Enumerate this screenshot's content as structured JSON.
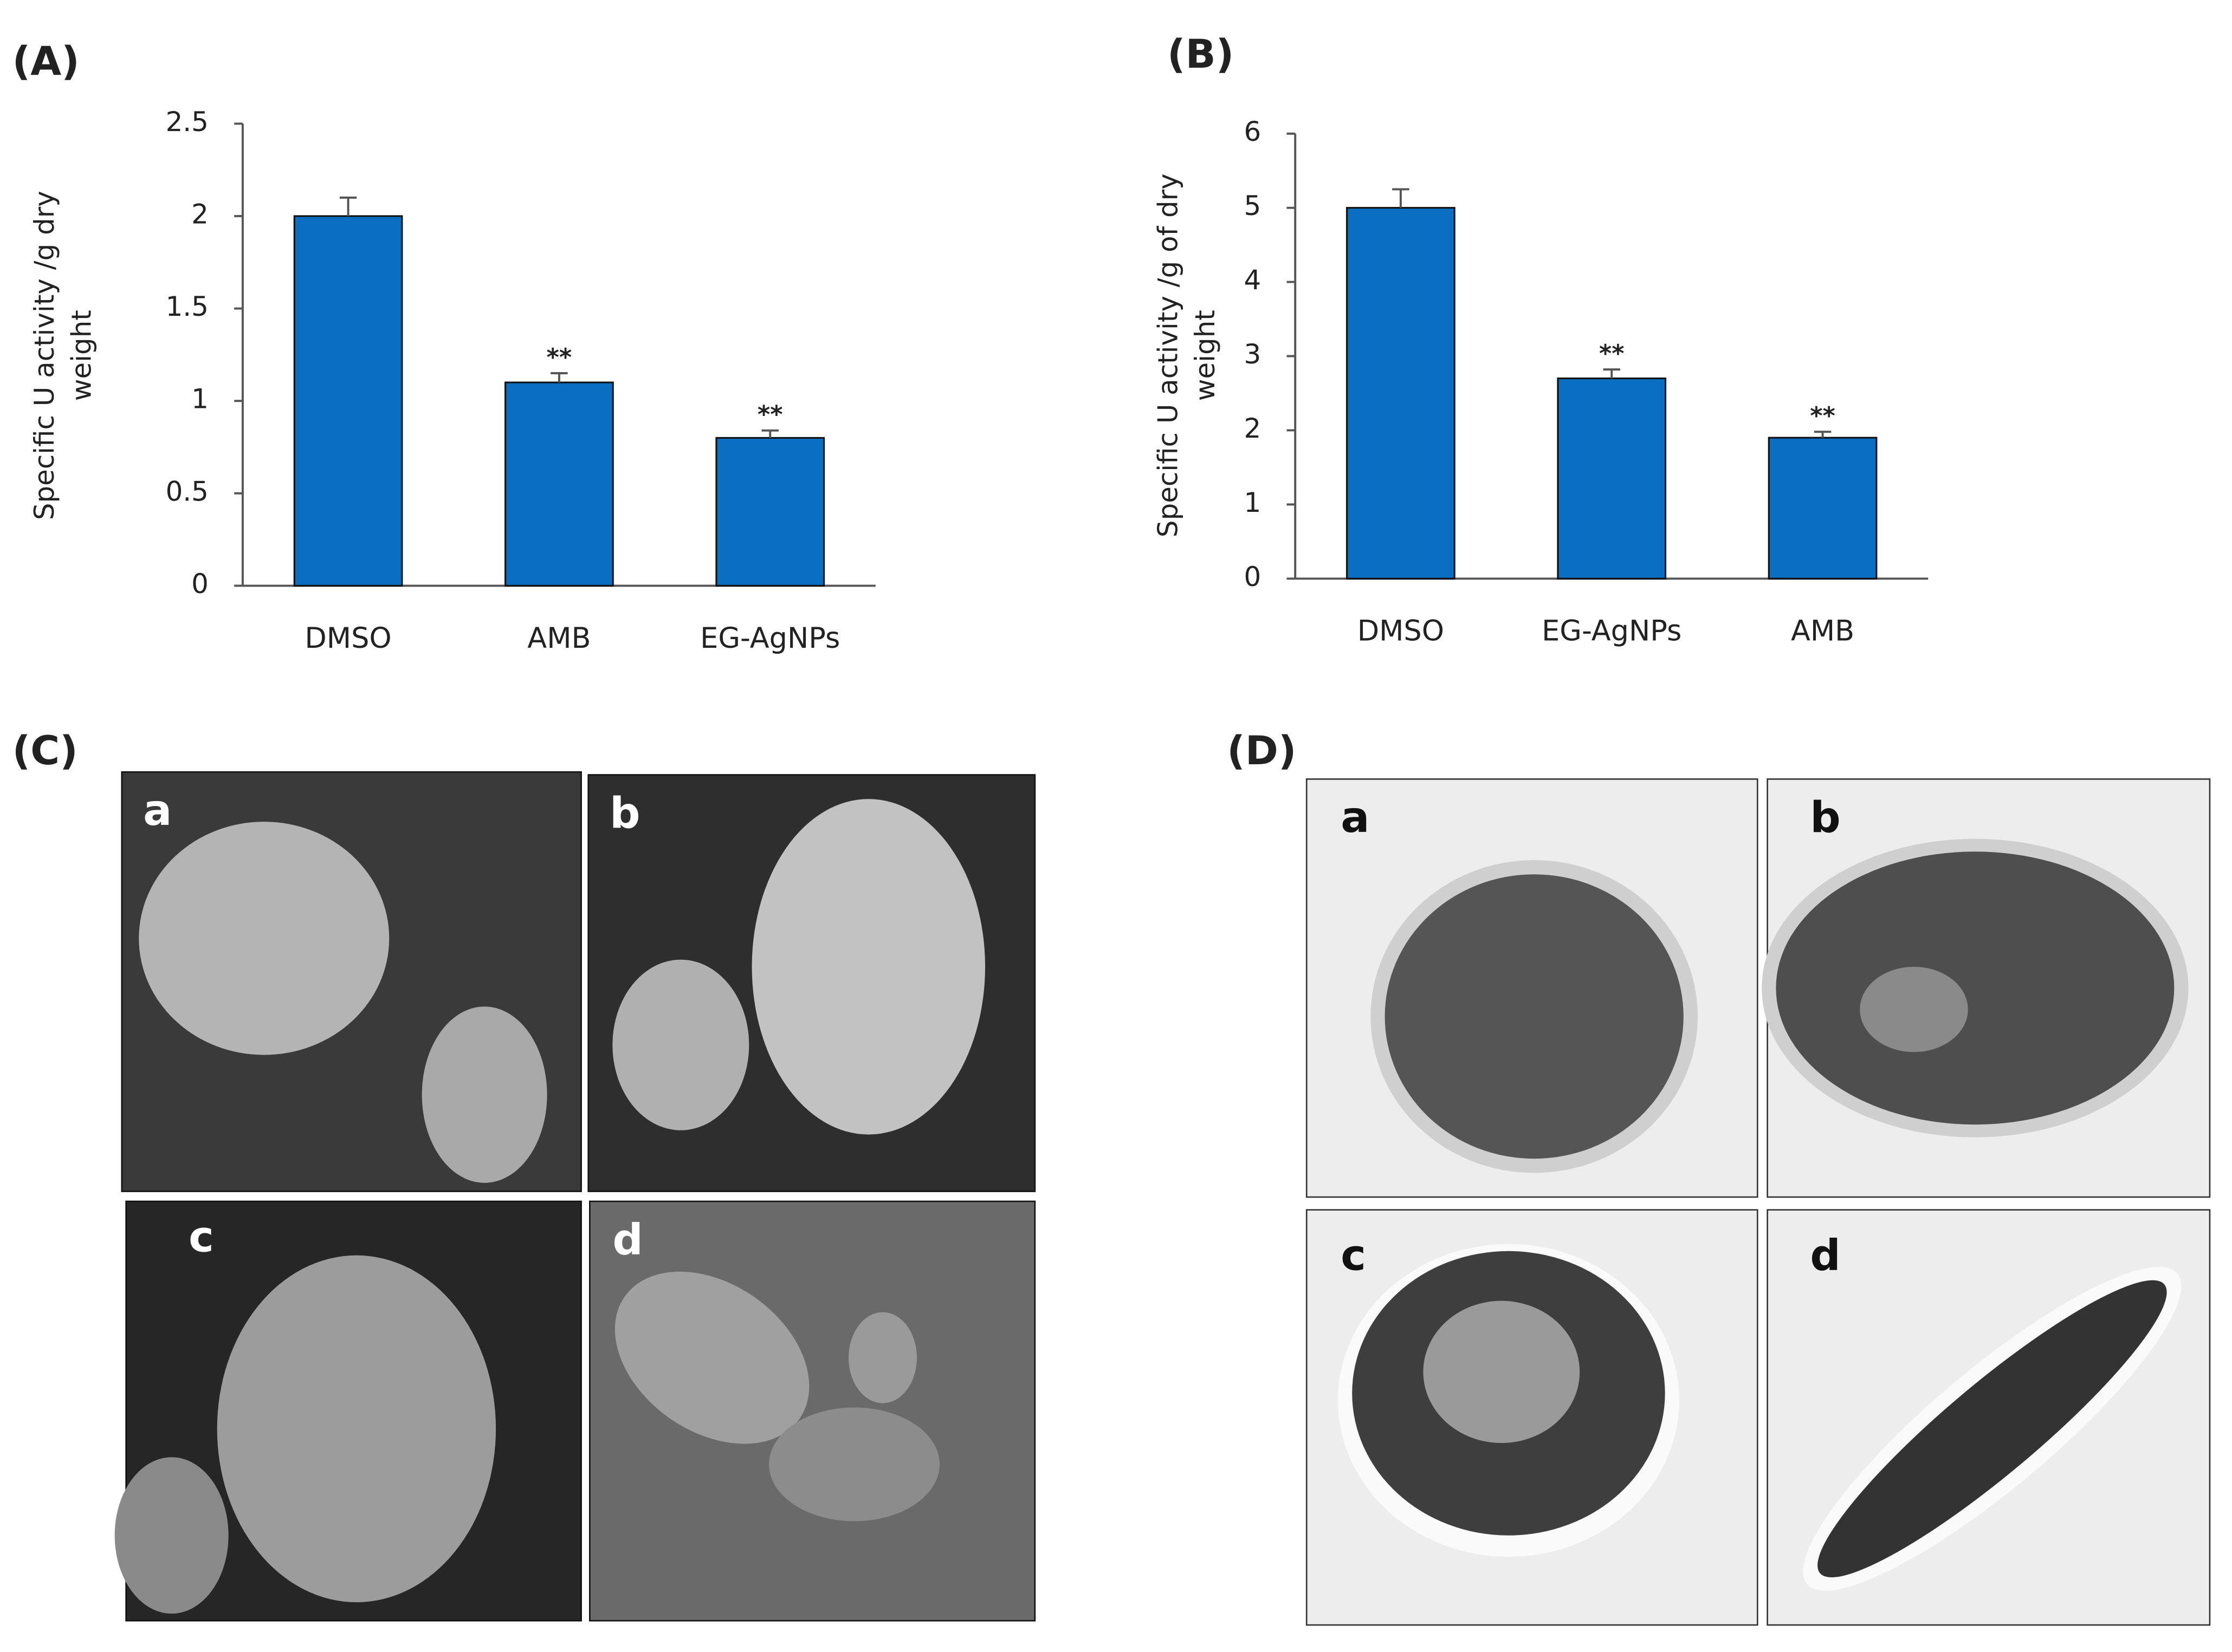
{
  "chart_data": [
    {
      "type": "bar",
      "title": "(A)",
      "y_label": [
        "Specific U activity /g dry",
        "weight"
      ],
      "categories": [
        "DMSO",
        "AMB",
        "EG-AgNPs"
      ],
      "values": [
        2.0,
        1.1,
        0.8
      ],
      "errors": [
        0.1,
        0.05,
        0.04
      ],
      "significance": [
        null,
        "**",
        "**"
      ],
      "color": "#0a6fc2",
      "ylim": [
        0,
        2.5
      ],
      "yticks": [
        0,
        0.5,
        1,
        1.5,
        2,
        2.5
      ],
      "grid": false
    },
    {
      "type": "bar",
      "title": "(B)",
      "y_label": [
        "Specific U activity /g of dry",
        "weight"
      ],
      "categories": [
        "DMSO",
        "EG-AgNPs",
        "AMB"
      ],
      "values": [
        5.0,
        2.7,
        1.9
      ],
      "errors": [
        0.25,
        0.12,
        0.08
      ],
      "significance": [
        null,
        "**",
        "**"
      ],
      "color": "#0a6fc2",
      "ylim": [
        0,
        6
      ],
      "yticks": [
        0,
        1,
        2,
        3,
        4,
        5,
        6
      ],
      "grid": false
    }
  ],
  "image_panels": [
    {
      "label": "(C)",
      "subpanels": [
        "a",
        "b",
        "c",
        "d"
      ]
    },
    {
      "label": "(D)",
      "subpanels": [
        "a",
        "b",
        "c",
        "d"
      ]
    }
  ]
}
